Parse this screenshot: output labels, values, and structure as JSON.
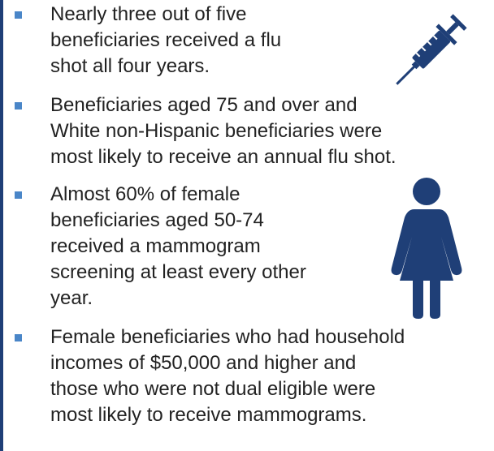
{
  "bullets": [
    {
      "lines": [
        "Nearly three out of five",
        "beneficiaries received a flu",
        "shot all four years."
      ]
    },
    {
      "lines": [
        "Beneficiaries aged 75 and over and",
        "White non-Hispanic beneficiaries were",
        "most likely to receive an annual flu shot."
      ]
    },
    {
      "lines": [
        "Almost 60% of female",
        "beneficiaries aged 50-74",
        "received a mammogram",
        "screening at least every other",
        "year."
      ]
    },
    {
      "lines": [
        "Female beneficiaries who had household",
        "incomes of $50,000 and higher and",
        "those who were not dual eligible were",
        "most likely to receive mammograms."
      ]
    }
  ]
}
